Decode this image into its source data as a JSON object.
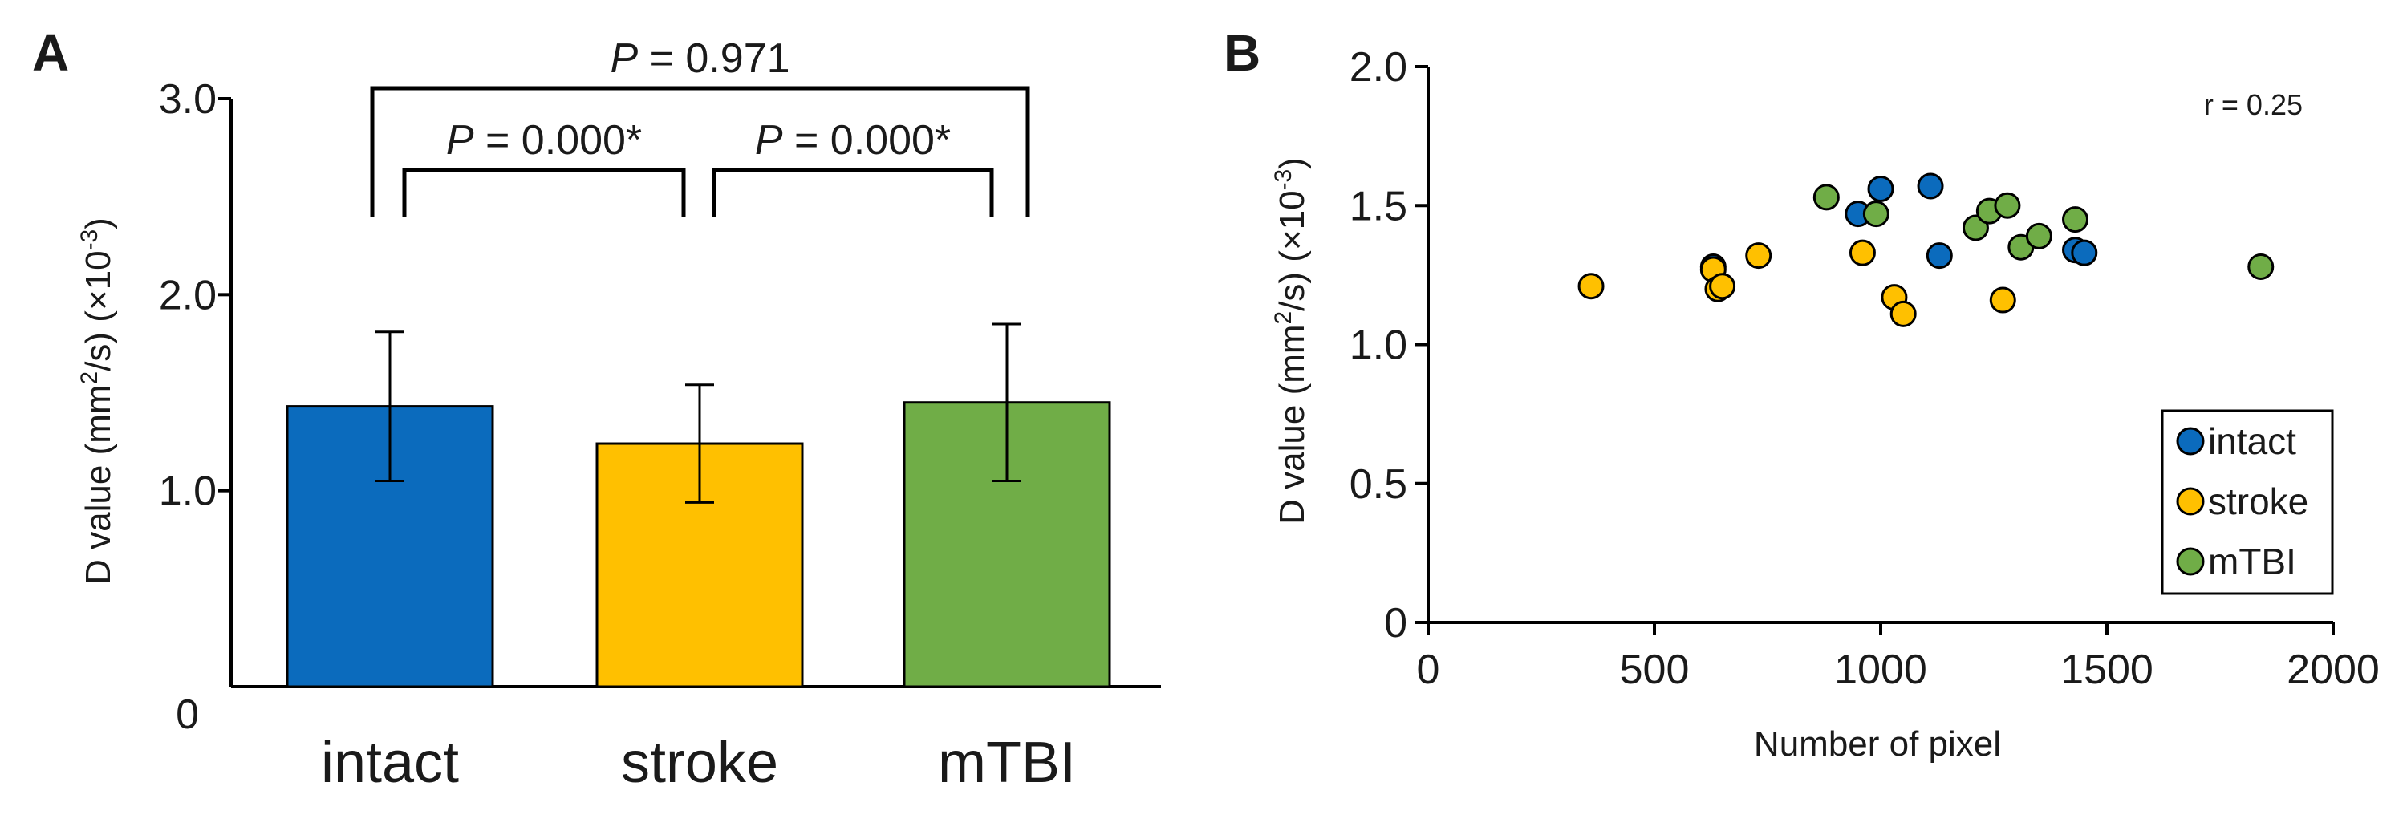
{
  "chart_data": [
    {
      "panel": "A",
      "type": "bar",
      "categories": [
        "intact",
        "stroke",
        "mTBI"
      ],
      "values": [
        1.43,
        1.24,
        1.45
      ],
      "errors": [
        0.38,
        0.3,
        0.4
      ],
      "colors": [
        "#0b6bbd",
        "#ffc000",
        "#70ad47"
      ],
      "ylabel": "D value (mm²/s) (×10⁻³)",
      "ylabel_parts": {
        "pre": "D value (mm",
        "sup1": "2",
        "mid": "/s) (×10",
        "sup2": "-3",
        "post": ")"
      },
      "ylim": [
        0,
        3.0
      ],
      "yticks": [
        "0",
        "1.0",
        "2.0",
        "3.0"
      ],
      "ytick_values": [
        0,
        1.0,
        2.0,
        3.0
      ],
      "comparisons": [
        {
          "from": 0,
          "to": 1,
          "p_italic": "P",
          "p_rest": " = 0.000*"
        },
        {
          "from": 1,
          "to": 2,
          "p_italic": "P",
          "p_rest": " = 0.000*"
        },
        {
          "from": 0,
          "to": 2,
          "p_italic": "P",
          "p_rest": " = 0.971"
        }
      ]
    },
    {
      "panel": "B",
      "type": "scatter",
      "xlabel": "Number of pixel",
      "ylabel": "D value (mm²/s) (×10⁻³)",
      "ylabel_parts": {
        "pre": "D value (mm",
        "sup1": "2",
        "mid": "/s) (×10",
        "sup2": "-3",
        "post": ")"
      },
      "xlim": [
        0,
        2000
      ],
      "ylim": [
        0,
        2.0
      ],
      "xticks": [
        "0",
        "500",
        "1000",
        "1500",
        "2000"
      ],
      "xtick_values": [
        0,
        500,
        1000,
        1500,
        2000
      ],
      "yticks": [
        "0",
        "0.5",
        "1.0",
        "1.5",
        "2.0"
      ],
      "ytick_values": [
        0,
        0.5,
        1.0,
        1.5,
        2.0
      ],
      "annotation": "r = 0.25",
      "legend_position": "bottom-right",
      "series": [
        {
          "name": "intact",
          "color": "#0b6bbd",
          "points": [
            [
              630,
              1.28
            ],
            [
              950,
              1.47
            ],
            [
              1000,
              1.56
            ],
            [
              1110,
              1.57
            ],
            [
              1130,
              1.32
            ],
            [
              1430,
              1.34
            ],
            [
              1450,
              1.33
            ]
          ]
        },
        {
          "name": "stroke",
          "color": "#ffc000",
          "points": [
            [
              360,
              1.21
            ],
            [
              630,
              1.27
            ],
            [
              640,
              1.2
            ],
            [
              650,
              1.21
            ],
            [
              730,
              1.32
            ],
            [
              960,
              1.33
            ],
            [
              1030,
              1.17
            ],
            [
              1050,
              1.11
            ],
            [
              1270,
              1.16
            ]
          ]
        },
        {
          "name": "mTBI",
          "color": "#70ad47",
          "points": [
            [
              880,
              1.53
            ],
            [
              990,
              1.47
            ],
            [
              1210,
              1.42
            ],
            [
              1240,
              1.48
            ],
            [
              1280,
              1.5
            ],
            [
              1310,
              1.35
            ],
            [
              1350,
              1.39
            ],
            [
              1430,
              1.45
            ],
            [
              1840,
              1.28
            ]
          ]
        }
      ]
    }
  ]
}
